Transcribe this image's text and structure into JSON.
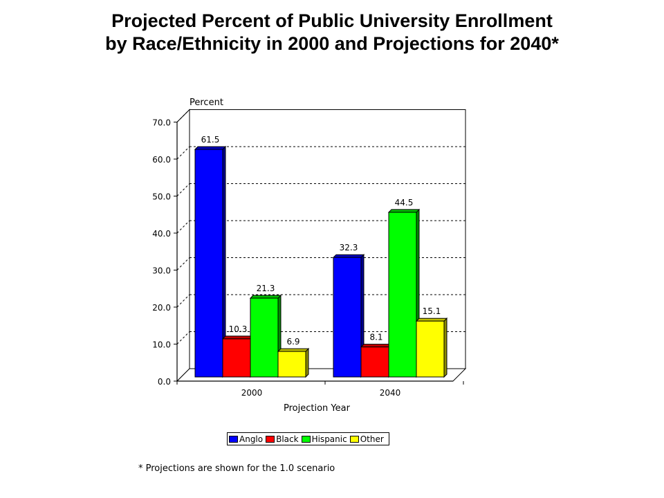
{
  "title_line1": "Projected Percent of Public University Enrollment",
  "title_line2": "by Race/Ethnicity in 2000 and Projections for 2040*",
  "footnote": "* Projections are shown for the 1.0 scenario",
  "chart_data": {
    "type": "bar",
    "categories": [
      "2000",
      "2040"
    ],
    "series": [
      {
        "name": "Anglo",
        "values": [
          61.5,
          32.3
        ],
        "color": "#0000ff"
      },
      {
        "name": "Black",
        "values": [
          10.3,
          8.1
        ],
        "color": "#ff0000"
      },
      {
        "name": "Hispanic",
        "values": [
          21.3,
          44.5
        ],
        "color": "#00ff00"
      },
      {
        "name": "Other",
        "values": [
          6.9,
          15.1
        ],
        "color": "#ffff00"
      }
    ],
    "ylabel": "Percent",
    "xlabel": "Projection Year",
    "ylim": [
      0,
      70
    ],
    "yticks": [
      "0.0",
      "10.0",
      "20.0",
      "30.0",
      "40.0",
      "50.0",
      "60.0",
      "70.0"
    ],
    "grid": true,
    "legend_position": "bottom"
  }
}
